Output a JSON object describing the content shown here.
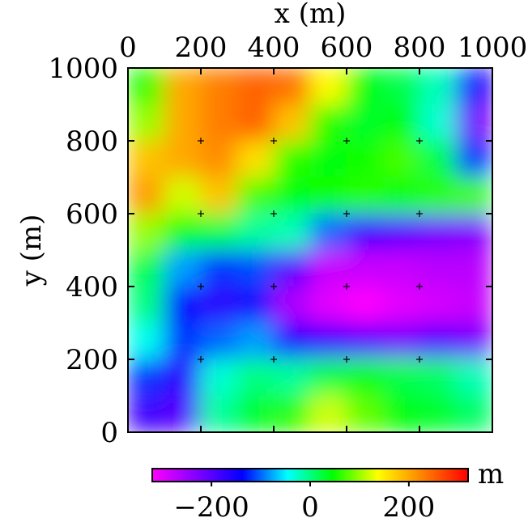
{
  "chart_data": {
    "type": "heatmap",
    "title": "",
    "xlabel": "x (m)",
    "ylabel": "y (m)",
    "x_axis_position": "top",
    "xlim": [
      0,
      1000
    ],
    "ylim": [
      0,
      1000
    ],
    "x_ticks": [
      0,
      200,
      400,
      600,
      800,
      1000
    ],
    "y_ticks": [
      0,
      200,
      400,
      600,
      800,
      1000
    ],
    "x_tick_labels": [
      "0",
      "200",
      "400",
      "600",
      "800",
      "1000"
    ],
    "y_tick_labels": [
      "0",
      "200",
      "400",
      "600",
      "800",
      "1000"
    ],
    "grid": "cross markers at interior tick intersections",
    "colorbar": {
      "placement": "bottom",
      "unit_label": "m",
      "range": [
        -320,
        320
      ],
      "ticks": [
        -200,
        0,
        200
      ],
      "tick_labels": [
        "−200",
        "0",
        "200"
      ],
      "colormap": [
        "#ff00ff",
        "#8000ff",
        "#0000ff",
        "#00ffff",
        "#00ff00",
        "#ffff00",
        "#ff8000",
        "#ff0000"
      ]
    },
    "grid_resolution": [
      10,
      10
    ],
    "x_centers": [
      50,
      150,
      250,
      350,
      450,
      550,
      650,
      750,
      850,
      950
    ],
    "y_centers": [
      950,
      850,
      750,
      650,
      550,
      450,
      350,
      250,
      150,
      50
    ],
    "values": [
      [
        60,
        200,
        230,
        250,
        240,
        140,
        40,
        20,
        -20,
        -150
      ],
      [
        100,
        200,
        230,
        250,
        180,
        60,
        30,
        40,
        -30,
        -220
      ],
      [
        180,
        200,
        220,
        160,
        60,
        40,
        50,
        70,
        20,
        -120
      ],
      [
        210,
        120,
        180,
        70,
        40,
        50,
        60,
        40,
        60,
        70
      ],
      [
        100,
        40,
        20,
        -10,
        -20,
        -100,
        -180,
        -200,
        -220,
        -230
      ],
      [
        20,
        -80,
        -120,
        -110,
        -200,
        -280,
        -280,
        -280,
        -270,
        -270
      ],
      [
        0,
        -140,
        -170,
        -150,
        -260,
        -300,
        -320,
        -300,
        -290,
        -280
      ],
      [
        -40,
        -120,
        -100,
        -80,
        -150,
        -180,
        -200,
        -220,
        -200,
        -220
      ],
      [
        -120,
        -170,
        -30,
        0,
        -10,
        20,
        40,
        20,
        10,
        -20
      ],
      [
        -180,
        -200,
        -10,
        30,
        60,
        120,
        80,
        40,
        30,
        10
      ]
    ]
  }
}
